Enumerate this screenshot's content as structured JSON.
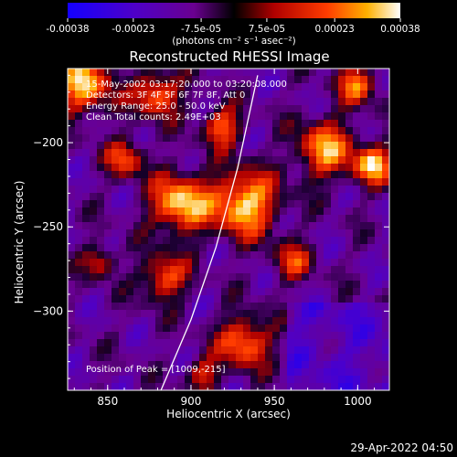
{
  "colorbar": {
    "tick_labels": [
      "-0.00038",
      "-0.00023",
      "-7.5e-05",
      "7.5e-05",
      "0.00023",
      "0.00038"
    ],
    "tick_values": [
      -0.00038,
      -0.00023,
      -7.5e-05,
      7.5e-05,
      0.00023,
      0.00038
    ],
    "range": [
      -0.00038,
      0.00038
    ],
    "units_label": "(photons cm⁻² s⁻¹ asec⁻²)",
    "colors": [
      "#1400ff",
      "#4e00c8",
      "#6a0090",
      "#000000",
      "#b00000",
      "#ff3c00",
      "#ffb000",
      "#ffffff"
    ]
  },
  "chart_data": {
    "type": "heatmap",
    "title": "Reconstructed RHESSI Image",
    "xlabel": "Heliocentric X (arcsec)",
    "ylabel": "Heliocentric Y (arcsec)",
    "xlim": [
      826,
      1019
    ],
    "ylim": [
      -347,
      -156
    ],
    "xticks": [
      850,
      900,
      950,
      1000
    ],
    "yticks": [
      -200,
      -250,
      -300
    ],
    "xtick_labels": [
      "850",
      "900",
      "950",
      "1000"
    ],
    "ytick_labels": [
      "−200",
      "−250",
      "−300"
    ],
    "annotations": [
      "15-May-2002 03:17:20.000 to 03:20:08.000",
      "Detectors: 3F 4F 5F 6F 7F 8F, Att 0",
      "Energy Range: 25.0 - 50.0 keV",
      "Clean    Total counts: 2.49E+03"
    ],
    "peak_label": "Position of Peak = [1009,-215]",
    "peak": [
      1009,
      -215
    ],
    "limb_curve": [
      [
        882,
        -347
      ],
      [
        900,
        -305
      ],
      [
        915,
        -262
      ],
      [
        928,
        -215
      ],
      [
        940,
        -160
      ]
    ]
  },
  "footer": {
    "timestamp": "29-Apr-2022 04:50"
  }
}
